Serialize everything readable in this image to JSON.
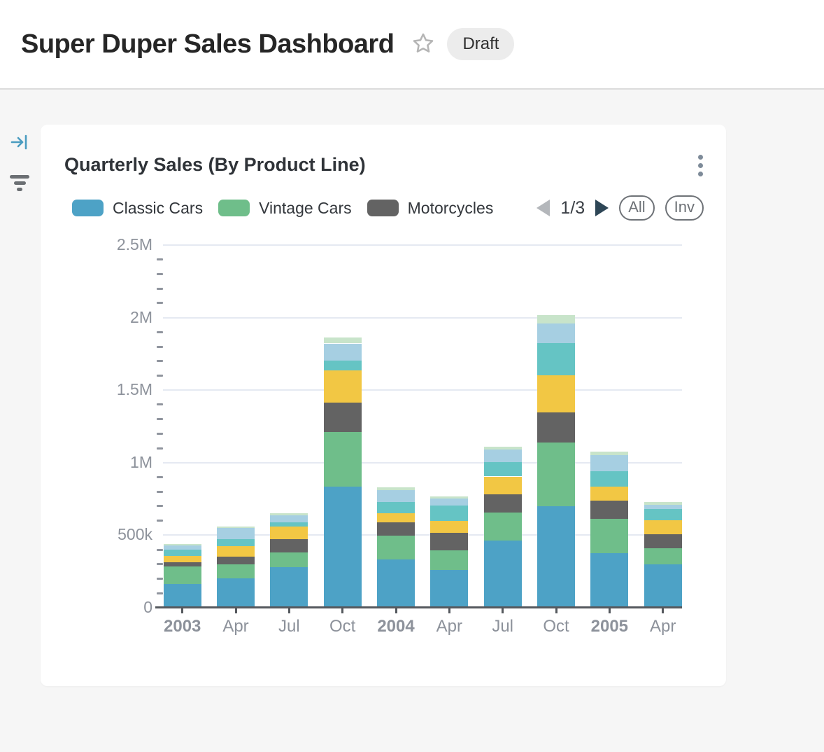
{
  "header": {
    "title": "Super Duper Sales Dashboard",
    "status_badge": "Draft",
    "star_icon": "star-outline-icon"
  },
  "sidebar": {
    "expand_icon": {
      "name": "expand-panel-icon",
      "color": "#4a9cc0"
    },
    "filter_icon": {
      "name": "filter-icon",
      "color": "#6b6f73"
    }
  },
  "card": {
    "title": "Quarterly Sales (By Product Line)",
    "menu_icon": "kebab-menu-icon",
    "legend_pagination": {
      "current": "1/3",
      "prev_enabled": false,
      "next_enabled": true
    },
    "buttons": {
      "all": "All",
      "invert": "Inv"
    }
  },
  "chart_data": {
    "type": "bar",
    "stacked": true,
    "title": "Quarterly Sales (By Product Line)",
    "xlabel": "",
    "ylabel": "",
    "grid": true,
    "legend_position": "top",
    "legend_visible_page": [
      "Classic Cars",
      "Vintage Cars",
      "Motorcycles"
    ],
    "y_axis": {
      "max_k": 2500,
      "major_step_k": 500,
      "minor_step_k": 100,
      "major_ticks": [
        {
          "label": "0",
          "value_k": 0
        },
        {
          "label": "500k",
          "value_k": 500
        },
        {
          "label": "1M",
          "value_k": 1000
        },
        {
          "label": "1.5M",
          "value_k": 1500
        },
        {
          "label": "2M",
          "value_k": 2000
        },
        {
          "label": "2.5M",
          "value_k": 2500
        }
      ]
    },
    "categories": [
      {
        "label": "2003",
        "bold": true
      },
      {
        "label": "Apr",
        "bold": false
      },
      {
        "label": "Jul",
        "bold": false
      },
      {
        "label": "Oct",
        "bold": false
      },
      {
        "label": "2004",
        "bold": true
      },
      {
        "label": "Apr",
        "bold": false
      },
      {
        "label": "Jul",
        "bold": false
      },
      {
        "label": "Oct",
        "bold": false
      },
      {
        "label": "2005",
        "bold": true
      },
      {
        "label": "Apr",
        "bold": false
      }
    ],
    "series": [
      {
        "name": "Classic Cars",
        "color": "#4DA2C6",
        "in_legend": true,
        "values_k": [
          165,
          203,
          278,
          833,
          335,
          262,
          463,
          699,
          378,
          297
        ]
      },
      {
        "name": "Vintage Cars",
        "color": "#6FBE8A",
        "in_legend": true,
        "values_k": [
          120,
          95,
          105,
          378,
          161,
          132,
          193,
          442,
          233,
          113
        ]
      },
      {
        "name": "Motorcycles",
        "color": "#636363",
        "in_legend": true,
        "values_k": [
          27,
          53,
          92,
          201,
          92,
          121,
          124,
          204,
          129,
          96
        ]
      },
      {
        "name": "unlabeled-yellow",
        "color": "#F2C744",
        "in_legend": false,
        "values_k": [
          47,
          72,
          85,
          225,
          64,
          85,
          125,
          257,
          96,
          96
        ]
      },
      {
        "name": "unlabeled-teal",
        "color": "#65C4C4",
        "in_legend": false,
        "values_k": [
          43,
          48,
          27,
          69,
          77,
          105,
          100,
          222,
          105,
          80
        ]
      },
      {
        "name": "unlabeled-light-blue",
        "color": "#A6CFE2",
        "in_legend": false,
        "values_k": [
          27,
          77,
          50,
          116,
          80,
          48,
          85,
          137,
          109,
          29
        ]
      },
      {
        "name": "unlabeled-light-green",
        "color": "#C8E4CA",
        "in_legend": false,
        "values_k": [
          11,
          14,
          13,
          40,
          19,
          13,
          21,
          56,
          27,
          16
        ]
      }
    ],
    "values_unit": "thousands"
  }
}
